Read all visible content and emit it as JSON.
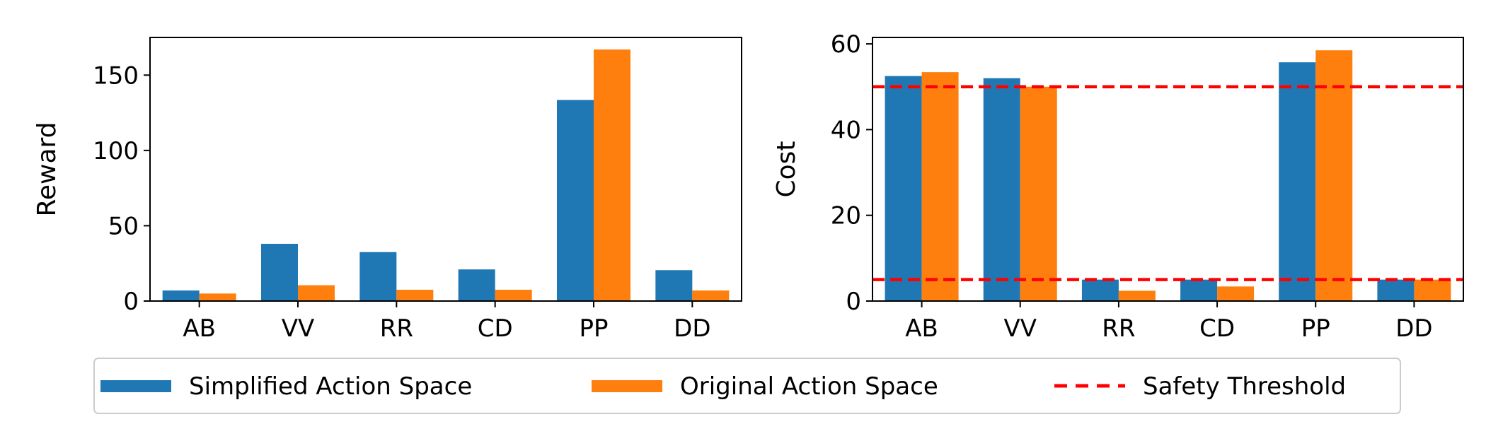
{
  "colors": {
    "simplified": "#1f77b4",
    "original": "#ff7f0e",
    "threshold": "#ff0000",
    "axis": "#000000",
    "legend_border": "#cccccc"
  },
  "legend": {
    "entries": [
      {
        "key": "simplified",
        "label": "Simplified Action Space",
        "marker": "bar"
      },
      {
        "key": "original",
        "label": "Original Action Space",
        "marker": "bar"
      },
      {
        "key": "threshold",
        "label": "Safety Threshold",
        "marker": "dashed-line"
      }
    ],
    "placement": "bottom-center"
  },
  "chart_data": [
    {
      "type": "bar",
      "categories": [
        "AB",
        "VV",
        "RR",
        "CD",
        "PP",
        "DD"
      ],
      "series": [
        {
          "name": "Simplified Action Space",
          "values": [
            7,
            38,
            32.5,
            21,
            133.5,
            20.5
          ]
        },
        {
          "name": "Original Action Space",
          "values": [
            5,
            10.5,
            7.5,
            7.5,
            167,
            7
          ]
        }
      ],
      "xlabel": "",
      "ylabel": "Reward",
      "ylim": [
        0,
        175
      ],
      "yticks": [
        0,
        50,
        100,
        150
      ],
      "grid": false,
      "reference_lines": []
    },
    {
      "type": "bar",
      "categories": [
        "AB",
        "VV",
        "RR",
        "CD",
        "PP",
        "DD"
      ],
      "series": [
        {
          "name": "Simplified Action Space",
          "values": [
            52.5,
            52,
            5,
            5,
            55.7,
            5
          ]
        },
        {
          "name": "Original Action Space",
          "values": [
            53.4,
            50,
            2.4,
            3.4,
            58.5,
            5
          ]
        }
      ],
      "xlabel": "",
      "ylabel": "Cost",
      "ylim": [
        0,
        61.5
      ],
      "yticks": [
        0,
        20,
        40,
        60
      ],
      "grid": false,
      "reference_lines": [
        {
          "name": "Safety Threshold",
          "value": 50,
          "style": "dashed"
        },
        {
          "name": "Safety Threshold",
          "value": 5,
          "style": "dashed"
        }
      ]
    }
  ]
}
